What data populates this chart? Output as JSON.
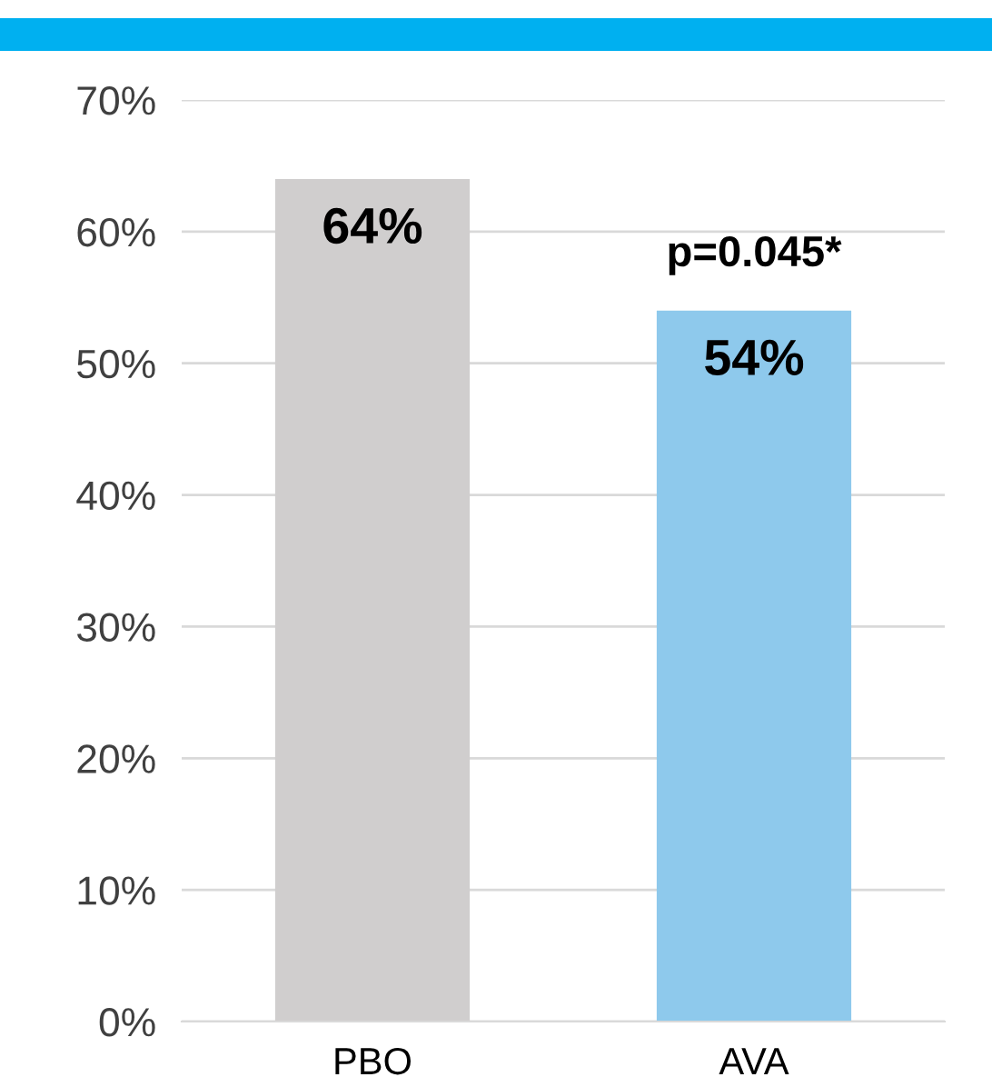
{
  "chart_data": {
    "type": "bar",
    "categories": [
      "PBO",
      "AVA"
    ],
    "values": [
      64,
      54
    ],
    "colors": [
      "#d0cece",
      "#8ec9ec"
    ],
    "value_labels": [
      "64%",
      "54%"
    ],
    "ylim": [
      0,
      70
    ],
    "yticks": [
      {
        "value": 0,
        "label": "0%"
      },
      {
        "value": 10,
        "label": "10%"
      },
      {
        "value": 20,
        "label": "20%"
      },
      {
        "value": 30,
        "label": "30%"
      },
      {
        "value": 40,
        "label": "40%"
      },
      {
        "value": 50,
        "label": "50%"
      },
      {
        "value": 60,
        "label": "60%"
      },
      {
        "value": 70,
        "label": "70%"
      }
    ],
    "grid": "y",
    "annotations": [
      "p=0.045*"
    ]
  }
}
